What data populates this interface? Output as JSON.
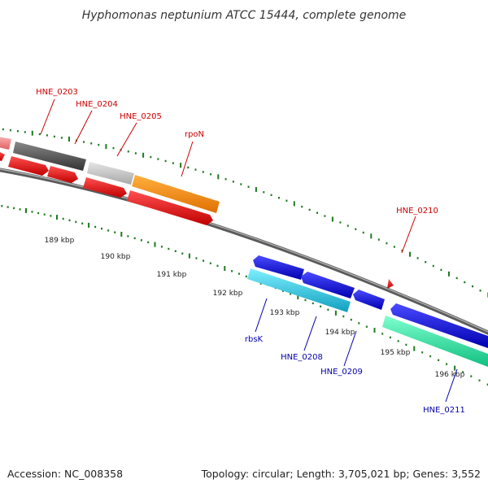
{
  "title": "Hyphomonas neptunium ATCC 15444, complete genome",
  "footer": {
    "accession": "Accession: NC_008358",
    "summary": "Topology: circular; Length: 3,705,021 bp; Genes: 3,552"
  },
  "colors": {
    "backbone": "#7a7a7a",
    "tick": "#1e7a1e",
    "label_forward": "#cc0000",
    "label_reverse": "#0000aa"
  },
  "scale_labels": [
    "189 kbp",
    "190 kbp",
    "191 kbp",
    "192 kbp",
    "193 kbp",
    "194 kbp",
    "195 kbp",
    "196 kbp"
  ],
  "gene_labels": [
    {
      "name": "HNE_0203",
      "strand": "forward"
    },
    {
      "name": "HNE_0204",
      "strand": "forward"
    },
    {
      "name": "HNE_0205",
      "strand": "forward"
    },
    {
      "name": "rpoN",
      "strand": "forward"
    },
    {
      "name": "HNE_0210",
      "strand": "forward"
    },
    {
      "name": "rbsK",
      "strand": "reverse"
    },
    {
      "name": "HNE_0208",
      "strand": "reverse"
    },
    {
      "name": "HNE_0209",
      "strand": "reverse"
    },
    {
      "name": "HNE_0211",
      "strand": "reverse"
    }
  ],
  "features": [
    {
      "track": "outer",
      "color": "#f08080",
      "icon": "gene-block"
    },
    {
      "track": "outer",
      "color": "#555555",
      "icon": "gene-block"
    },
    {
      "track": "outer",
      "color": "#bbbbbb",
      "icon": "gene-block"
    },
    {
      "track": "outer",
      "color": "#ff8c00",
      "icon": "gene-block"
    },
    {
      "track": "cds-forward",
      "color": "#ee0000",
      "icon": "arrow-right"
    },
    {
      "track": "cds-forward",
      "color": "#ee0000",
      "icon": "arrow-right"
    },
    {
      "track": "cds-forward",
      "color": "#ee0000",
      "icon": "arrow-right"
    },
    {
      "track": "cds-forward",
      "color": "#ee0000",
      "icon": "arrow-right"
    },
    {
      "track": "cds-forward",
      "color": "#ee0000",
      "icon": "arrow-right"
    },
    {
      "track": "cds-forward",
      "color": "#ee0000",
      "icon": "arrow-right"
    },
    {
      "track": "cds-reverse",
      "color": "#0000ee",
      "icon": "arrow-left"
    },
    {
      "track": "cds-reverse",
      "color": "#0000ee",
      "icon": "arrow-left"
    },
    {
      "track": "cds-reverse",
      "color": "#0000ee",
      "icon": "arrow-left"
    },
    {
      "track": "cds-reverse",
      "color": "#0000ee",
      "icon": "arrow-left"
    },
    {
      "track": "gene-reverse",
      "color": "#20c0d0",
      "icon": "gene-block"
    },
    {
      "track": "gene-reverse",
      "color": "#20e0a0",
      "icon": "gene-block"
    }
  ]
}
